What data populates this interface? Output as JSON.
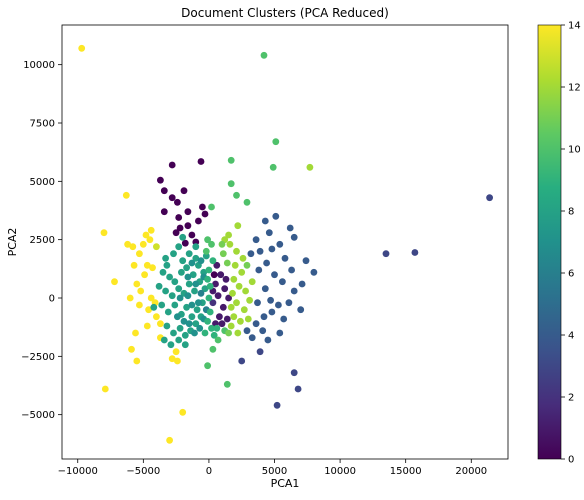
{
  "chart_data": {
    "type": "scatter",
    "title": "Document Clusters (PCA Reduced)",
    "xlabel": "PCA1",
    "ylabel": "PCA2",
    "xlim": [
      -11200,
      22800
    ],
    "ylim": [
      -6900,
      11700
    ],
    "xticks": [
      -10000,
      -5000,
      0,
      5000,
      10000,
      15000,
      20000
    ],
    "xtick_labels": [
      "−10000",
      "−5000",
      "0",
      "5000",
      "10000",
      "15000",
      "20000"
    ],
    "yticks": [
      -5000,
      -2500,
      0,
      2500,
      5000,
      7500,
      10000
    ],
    "ytick_labels": [
      "−5000",
      "−2500",
      "0",
      "2500",
      "5000",
      "7500",
      "10000"
    ],
    "grid": false,
    "colormap": "viridis",
    "colorbar": {
      "min": 0,
      "max": 14,
      "ticks": [
        0,
        2,
        4,
        6,
        8,
        10,
        12,
        14
      ],
      "tick_labels": [
        "0",
        "2",
        "4",
        "6",
        "8",
        "10",
        "12",
        "14"
      ]
    },
    "points": [
      {
        "x": -9700,
        "y": 10700,
        "c": 14
      },
      {
        "x": 4200,
        "y": 10400,
        "c": 10
      },
      {
        "x": 5100,
        "y": 6700,
        "c": 10
      },
      {
        "x": 7700,
        "y": 5600,
        "c": 12
      },
      {
        "x": 4900,
        "y": 5600,
        "c": 10
      },
      {
        "x": 1700,
        "y": 5900,
        "c": 10
      },
      {
        "x": 21400,
        "y": 4300,
        "c": 3
      },
      {
        "x": 15700,
        "y": 1950,
        "c": 3
      },
      {
        "x": 13500,
        "y": 1900,
        "c": 3
      },
      {
        "x": -2800,
        "y": 5700,
        "c": 0
      },
      {
        "x": -600,
        "y": 5850,
        "c": 0
      },
      {
        "x": -3700,
        "y": 5050,
        "c": 0
      },
      {
        "x": -3400,
        "y": 4600,
        "c": 0
      },
      {
        "x": -1900,
        "y": 4600,
        "c": 0
      },
      {
        "x": -2800,
        "y": 4300,
        "c": 0
      },
      {
        "x": -2400,
        "y": 4100,
        "c": 0
      },
      {
        "x": -1600,
        "y": 3700,
        "c": 0
      },
      {
        "x": -3400,
        "y": 3700,
        "c": 0
      },
      {
        "x": -2300,
        "y": 3450,
        "c": 0
      },
      {
        "x": -500,
        "y": 3900,
        "c": 0
      },
      {
        "x": -800,
        "y": 3300,
        "c": 0
      },
      {
        "x": -1600,
        "y": 3100,
        "c": 0
      },
      {
        "x": -2200,
        "y": 3000,
        "c": 0
      },
      {
        "x": -2500,
        "y": 2800,
        "c": 0
      },
      {
        "x": -1300,
        "y": 2700,
        "c": 0
      },
      {
        "x": -1000,
        "y": 2400,
        "c": 0
      },
      {
        "x": -1800,
        "y": 2350,
        "c": 0
      },
      {
        "x": -300,
        "y": 3600,
        "c": 0
      },
      {
        "x": 1700,
        "y": 4900,
        "c": 10
      },
      {
        "x": 2100,
        "y": 4400,
        "c": 10
      },
      {
        "x": 2900,
        "y": 4100,
        "c": 10
      },
      {
        "x": 200,
        "y": 3900,
        "c": 10
      },
      {
        "x": 2200,
        "y": 3100,
        "c": 12
      },
      {
        "x": -6300,
        "y": 4400,
        "c": 14
      },
      {
        "x": -8000,
        "y": 2800,
        "c": 14
      },
      {
        "x": -4400,
        "y": 2900,
        "c": 14
      },
      {
        "x": -4800,
        "y": 2700,
        "c": 14
      },
      {
        "x": -4500,
        "y": 2500,
        "c": 14
      },
      {
        "x": -6200,
        "y": 2300,
        "c": 14
      },
      {
        "x": -5000,
        "y": 2300,
        "c": 14
      },
      {
        "x": -4000,
        "y": 2200,
        "c": 13
      },
      {
        "x": -5800,
        "y": 2200,
        "c": 14
      },
      {
        "x": -5300,
        "y": 1900,
        "c": 14
      },
      {
        "x": -4700,
        "y": 1400,
        "c": 14
      },
      {
        "x": -5700,
        "y": 1400,
        "c": 14
      },
      {
        "x": -4300,
        "y": 1300,
        "c": 14
      },
      {
        "x": -4900,
        "y": 1000,
        "c": 14
      },
      {
        "x": -7200,
        "y": 700,
        "c": 14
      },
      {
        "x": -5500,
        "y": 600,
        "c": 14
      },
      {
        "x": -5200,
        "y": 300,
        "c": 14
      },
      {
        "x": -4400,
        "y": 0,
        "c": 14
      },
      {
        "x": -6000,
        "y": 0,
        "c": 14
      },
      {
        "x": -4100,
        "y": -200,
        "c": 14
      },
      {
        "x": -4600,
        "y": -500,
        "c": 14
      },
      {
        "x": -5300,
        "y": -300,
        "c": 14
      },
      {
        "x": -4000,
        "y": -800,
        "c": 14
      },
      {
        "x": -4700,
        "y": -1200,
        "c": 14
      },
      {
        "x": -3700,
        "y": -1100,
        "c": 14
      },
      {
        "x": -3700,
        "y": -1700,
        "c": 14
      },
      {
        "x": -5600,
        "y": -1500,
        "c": 14
      },
      {
        "x": -5900,
        "y": -2200,
        "c": 14
      },
      {
        "x": -5500,
        "y": -2700,
        "c": 14
      },
      {
        "x": -2500,
        "y": -2300,
        "c": 14
      },
      {
        "x": -2800,
        "y": -2600,
        "c": 14
      },
      {
        "x": -2400,
        "y": -2700,
        "c": 14
      },
      {
        "x": -7900,
        "y": -3900,
        "c": 14
      },
      {
        "x": -2000,
        "y": -4900,
        "c": 14
      },
      {
        "x": -3000,
        "y": -6100,
        "c": 14
      },
      {
        "x": -4200,
        "y": -400,
        "c": 8
      },
      {
        "x": -3800,
        "y": 500,
        "c": 8
      },
      {
        "x": -3500,
        "y": 1100,
        "c": 8
      },
      {
        "x": -3300,
        "y": 1700,
        "c": 8
      },
      {
        "x": -2700,
        "y": 1900,
        "c": 8
      },
      {
        "x": -3200,
        "y": 1400,
        "c": 8
      },
      {
        "x": -2300,
        "y": 2200,
        "c": 8
      },
      {
        "x": -2000,
        "y": 1600,
        "c": 8
      },
      {
        "x": -1500,
        "y": 1900,
        "c": 8
      },
      {
        "x": -1000,
        "y": 1700,
        "c": 8
      },
      {
        "x": -3000,
        "y": 900,
        "c": 8
      },
      {
        "x": -2600,
        "y": 700,
        "c": 8
      },
      {
        "x": -2100,
        "y": 1100,
        "c": 8
      },
      {
        "x": -1700,
        "y": 1300,
        "c": 8
      },
      {
        "x": -1200,
        "y": 1000,
        "c": 8
      },
      {
        "x": -800,
        "y": 1400,
        "c": 8
      },
      {
        "x": -400,
        "y": 1100,
        "c": 8
      },
      {
        "x": -3300,
        "y": 300,
        "c": 8
      },
      {
        "x": -2800,
        "y": 100,
        "c": 8
      },
      {
        "x": -2300,
        "y": 400,
        "c": 8
      },
      {
        "x": -1900,
        "y": 200,
        "c": 8
      },
      {
        "x": -1500,
        "y": 600,
        "c": 8
      },
      {
        "x": -1100,
        "y": 300,
        "c": 8
      },
      {
        "x": -700,
        "y": 700,
        "c": 8
      },
      {
        "x": -300,
        "y": 400,
        "c": 8
      },
      {
        "x": -3600,
        "y": -300,
        "c": 8
      },
      {
        "x": -3100,
        "y": -600,
        "c": 8
      },
      {
        "x": -2600,
        "y": -300,
        "c": 8
      },
      {
        "x": -2100,
        "y": -700,
        "c": 8
      },
      {
        "x": -1700,
        "y": -400,
        "c": 8
      },
      {
        "x": -1300,
        "y": -800,
        "c": 8
      },
      {
        "x": -900,
        "y": -500,
        "c": 8
      },
      {
        "x": -500,
        "y": -200,
        "c": 8
      },
      {
        "x": -3200,
        "y": -1200,
        "c": 8
      },
      {
        "x": -2700,
        "y": -1500,
        "c": 8
      },
      {
        "x": -2200,
        "y": -1300,
        "c": 8
      },
      {
        "x": -1800,
        "y": -1600,
        "c": 8
      },
      {
        "x": -1400,
        "y": -1400,
        "c": 8
      },
      {
        "x": -2300,
        "y": -1800,
        "c": 8
      },
      {
        "x": -1800,
        "y": -2000,
        "c": 8
      },
      {
        "x": -3400,
        "y": -1800,
        "c": 8
      },
      {
        "x": -2900,
        "y": -2000,
        "c": 8
      },
      {
        "x": -1000,
        "y": -1100,
        "c": 8
      },
      {
        "x": -600,
        "y": -800,
        "c": 8
      },
      {
        "x": -2000,
        "y": 2600,
        "c": 8
      },
      {
        "x": -1000,
        "y": 2200,
        "c": 8
      },
      {
        "x": -200,
        "y": 1800,
        "c": 8
      },
      {
        "x": -2400,
        "y": -800,
        "c": 7
      },
      {
        "x": -1900,
        "y": -1000,
        "c": 7
      },
      {
        "x": -1500,
        "y": -1100,
        "c": 7
      },
      {
        "x": -1100,
        "y": -1500,
        "c": 7
      },
      {
        "x": -700,
        "y": -1300,
        "c": 7
      },
      {
        "x": -400,
        "y": -900,
        "c": 7
      },
      {
        "x": -800,
        "y": -200,
        "c": 7
      },
      {
        "x": -1300,
        "y": -300,
        "c": 7
      },
      {
        "x": -600,
        "y": 200,
        "c": 6
      },
      {
        "x": -200,
        "y": -500,
        "c": 6
      },
      {
        "x": -2200,
        "y": 0,
        "c": 7
      },
      {
        "x": -1600,
        "y": 100,
        "c": 7
      },
      {
        "x": -1000,
        "y": 600,
        "c": 7
      },
      {
        "x": -400,
        "y": 900,
        "c": 7
      },
      {
        "x": -1300,
        "y": 1500,
        "c": 7
      },
      {
        "x": -600,
        "y": 1600,
        "c": 7
      },
      {
        "x": -1600,
        "y": 900,
        "c": 7
      },
      {
        "x": 300,
        "y": -200,
        "c": 2
      },
      {
        "x": 700,
        "y": 100,
        "c": 1
      },
      {
        "x": 1100,
        "y": -400,
        "c": 1
      },
      {
        "x": 800,
        "y": -800,
        "c": 1
      },
      {
        "x": 1200,
        "y": 400,
        "c": 1
      },
      {
        "x": 500,
        "y": 600,
        "c": 1
      },
      {
        "x": 900,
        "y": 1000,
        "c": 1
      },
      {
        "x": 400,
        "y": 1000,
        "c": 0
      },
      {
        "x": 600,
        "y": 1400,
        "c": 1
      },
      {
        "x": 1000,
        "y": -1100,
        "c": 1
      },
      {
        "x": 500,
        "y": -1100,
        "c": 1
      },
      {
        "x": 1400,
        "y": -900,
        "c": 1
      },
      {
        "x": 1300,
        "y": 800,
        "c": 1
      },
      {
        "x": 300,
        "y": 300,
        "c": 1
      },
      {
        "x": 1500,
        "y": 0,
        "c": 1
      },
      {
        "x": 0,
        "y": 0,
        "c": 9
      },
      {
        "x": 100,
        "y": -600,
        "c": 9
      },
      {
        "x": -100,
        "y": -1000,
        "c": 9
      },
      {
        "x": 200,
        "y": -1300,
        "c": 9
      },
      {
        "x": -300,
        "y": -1500,
        "c": 9
      },
      {
        "x": 100,
        "y": 500,
        "c": 9
      },
      {
        "x": -100,
        "y": 800,
        "c": 9
      },
      {
        "x": 0,
        "y": 1200,
        "c": 9
      },
      {
        "x": 300,
        "y": 1600,
        "c": 9
      },
      {
        "x": -200,
        "y": 2000,
        "c": 10
      },
      {
        "x": 200,
        "y": 2300,
        "c": 10
      },
      {
        "x": -100,
        "y": 2500,
        "c": 10
      },
      {
        "x": 400,
        "y": -1600,
        "c": 9
      },
      {
        "x": 600,
        "y": -1300,
        "c": 9
      },
      {
        "x": 700,
        "y": -1800,
        "c": 10
      },
      {
        "x": 300,
        "y": -2200,
        "c": 10
      },
      {
        "x": -100,
        "y": -2900,
        "c": 10
      },
      {
        "x": 1200,
        "y": -1400,
        "c": 10
      },
      {
        "x": 1400,
        "y": -3700,
        "c": 10
      },
      {
        "x": 1500,
        "y": -1500,
        "c": 11
      },
      {
        "x": 1700,
        "y": -1200,
        "c": 12
      },
      {
        "x": 1900,
        "y": -800,
        "c": 12
      },
      {
        "x": 1700,
        "y": -400,
        "c": 12
      },
      {
        "x": 2100,
        "y": -200,
        "c": 12
      },
      {
        "x": 1800,
        "y": 200,
        "c": 12
      },
      {
        "x": 2300,
        "y": 500,
        "c": 12
      },
      {
        "x": 1900,
        "y": 800,
        "c": 12
      },
      {
        "x": 2500,
        "y": 1100,
        "c": 12
      },
      {
        "x": 2000,
        "y": 1400,
        "c": 12
      },
      {
        "x": 2600,
        "y": 1700,
        "c": 12
      },
      {
        "x": 2100,
        "y": 2000,
        "c": 12
      },
      {
        "x": 1600,
        "y": 2300,
        "c": 12
      },
      {
        "x": 1200,
        "y": 2500,
        "c": 12
      },
      {
        "x": 1500,
        "y": 2700,
        "c": 12
      },
      {
        "x": 2700,
        "y": -500,
        "c": 12
      },
      {
        "x": 3100,
        "y": -100,
        "c": 12
      },
      {
        "x": 2800,
        "y": 300,
        "c": 12
      },
      {
        "x": 3300,
        "y": 700,
        "c": 12
      },
      {
        "x": 2400,
        "y": -1000,
        "c": 12
      },
      {
        "x": 3000,
        "y": -900,
        "c": 12
      },
      {
        "x": 2200,
        "y": -1500,
        "c": 12
      },
      {
        "x": 1100,
        "y": 1900,
        "c": 11
      },
      {
        "x": 1400,
        "y": 1500,
        "c": 11
      },
      {
        "x": 1000,
        "y": 2300,
        "c": 11
      },
      {
        "x": 2900,
        "y": 1400,
        "c": 11
      },
      {
        "x": 3200,
        "y": 1900,
        "c": 4
      },
      {
        "x": 3600,
        "y": 2500,
        "c": 4
      },
      {
        "x": 3900,
        "y": 2000,
        "c": 4
      },
      {
        "x": 4300,
        "y": 3300,
        "c": 4
      },
      {
        "x": 5100,
        "y": 3500,
        "c": 4
      },
      {
        "x": 4600,
        "y": 2800,
        "c": 4
      },
      {
        "x": 4800,
        "y": 2100,
        "c": 4
      },
      {
        "x": 5400,
        "y": 2300,
        "c": 4
      },
      {
        "x": 6200,
        "y": 3000,
        "c": 4
      },
      {
        "x": 6500,
        "y": 2600,
        "c": 4
      },
      {
        "x": 5800,
        "y": 1700,
        "c": 4
      },
      {
        "x": 4400,
        "y": 1500,
        "c": 4
      },
      {
        "x": 3800,
        "y": 1200,
        "c": 4
      },
      {
        "x": 5000,
        "y": 1000,
        "c": 4
      },
      {
        "x": 5600,
        "y": 700,
        "c": 4
      },
      {
        "x": 6300,
        "y": 1200,
        "c": 4
      },
      {
        "x": 7400,
        "y": 1600,
        "c": 4
      },
      {
        "x": 7100,
        "y": 600,
        "c": 4
      },
      {
        "x": 6500,
        "y": 300,
        "c": 4
      },
      {
        "x": 4300,
        "y": 400,
        "c": 4
      },
      {
        "x": 3700,
        "y": -200,
        "c": 4
      },
      {
        "x": 4700,
        "y": -100,
        "c": 4
      },
      {
        "x": 5300,
        "y": -300,
        "c": 4
      },
      {
        "x": 6100,
        "y": -200,
        "c": 4
      },
      {
        "x": 7000,
        "y": -500,
        "c": 4
      },
      {
        "x": 4200,
        "y": -800,
        "c": 4
      },
      {
        "x": 4800,
        "y": -600,
        "c": 4
      },
      {
        "x": 5700,
        "y": -900,
        "c": 4
      },
      {
        "x": 3600,
        "y": -1100,
        "c": 4
      },
      {
        "x": 4100,
        "y": -1400,
        "c": 4
      },
      {
        "x": 3300,
        "y": -1700,
        "c": 4
      },
      {
        "x": 2900,
        "y": -1400,
        "c": 4
      },
      {
        "x": 4500,
        "y": -1800,
        "c": 4
      },
      {
        "x": 5400,
        "y": -1500,
        "c": 4
      },
      {
        "x": 3900,
        "y": -2300,
        "c": 3
      },
      {
        "x": 2500,
        "y": -2700,
        "c": 3
      },
      {
        "x": 6500,
        "y": -3200,
        "c": 3
      },
      {
        "x": 6800,
        "y": -3900,
        "c": 3
      },
      {
        "x": 5200,
        "y": -4600,
        "c": 3
      },
      {
        "x": 8000,
        "y": 1100,
        "c": 4
      }
    ]
  }
}
